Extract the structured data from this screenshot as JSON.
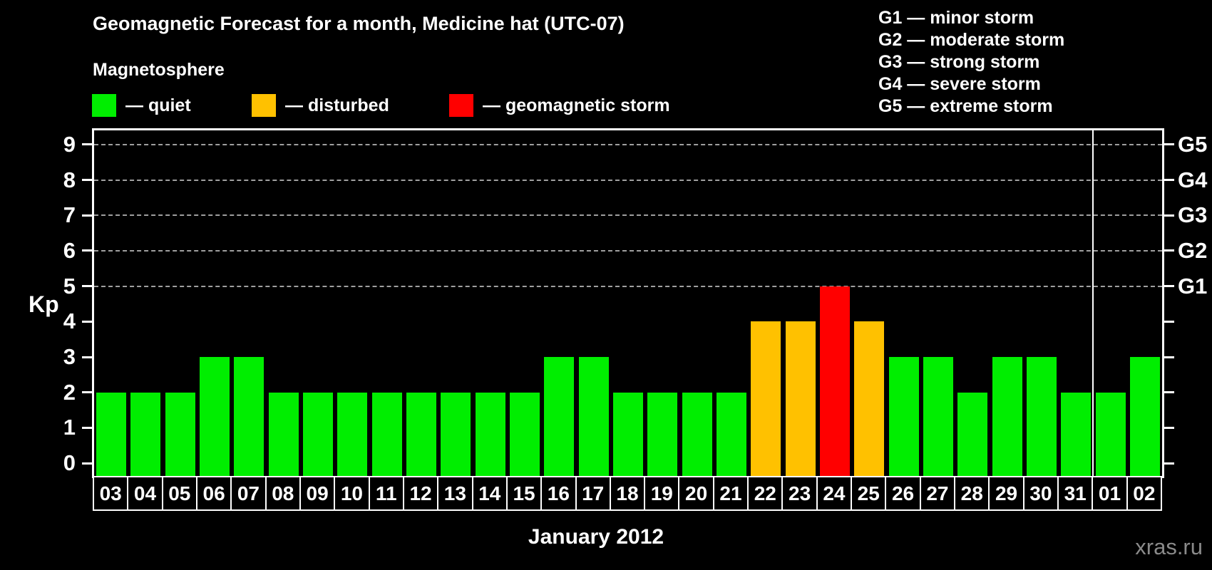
{
  "header": {
    "title": "Geomagnetic Forecast for a month, Medicine hat (UTC-07)",
    "subtitle": "Magnetosphere"
  },
  "colors": {
    "quiet": "#00ee00",
    "disturbed": "#ffc100",
    "storm": "#ff0000",
    "grid": "#9f9f9f",
    "axis": "#ffffff",
    "watermark": "#8a8a8a",
    "background": "#000000"
  },
  "legend": {
    "items": [
      {
        "name": "quiet",
        "label": "— quiet"
      },
      {
        "name": "disturbed",
        "label": "— disturbed"
      },
      {
        "name": "storm",
        "label": "— geomagnetic storm"
      }
    ]
  },
  "g_scale_legend": [
    "G1 — minor storm",
    "G2 — moderate storm",
    "G3 — strong storm",
    "G4 — severe storm",
    "G5 — extreme storm"
  ],
  "watermark": "xras.ru",
  "chart_data": {
    "type": "bar",
    "title": "Geomagnetic Forecast for a month, Medicine hat (UTC-07)",
    "ylabel": "Kp",
    "xlabel": "January 2012",
    "ylim": [
      0,
      9
    ],
    "yticks": [
      0,
      1,
      2,
      3,
      4,
      5,
      6,
      7,
      8,
      9
    ],
    "grid": "horizontal dashed lines at Kp 5 through 9",
    "gridlines_at": [
      5,
      6,
      7,
      8,
      9
    ],
    "right_axis": [
      {
        "label": "G1",
        "kp": 5
      },
      {
        "label": "G2",
        "kp": 6
      },
      {
        "label": "G3",
        "kp": 7
      },
      {
        "label": "G4",
        "kp": 8
      },
      {
        "label": "G5",
        "kp": 9
      }
    ],
    "categories": [
      "03",
      "04",
      "05",
      "06",
      "07",
      "08",
      "09",
      "10",
      "11",
      "12",
      "13",
      "14",
      "15",
      "16",
      "17",
      "18",
      "19",
      "20",
      "21",
      "22",
      "23",
      "24",
      "25",
      "26",
      "27",
      "28",
      "29",
      "30",
      "31",
      "01",
      "02"
    ],
    "values": [
      2,
      2,
      2,
      3,
      3,
      2,
      2,
      2,
      2,
      2,
      2,
      2,
      2,
      3,
      3,
      2,
      2,
      2,
      2,
      4,
      4,
      5,
      4,
      3,
      3,
      2,
      3,
      3,
      2,
      2,
      3
    ],
    "color_rule": {
      "quiet_max": 3,
      "disturbed_min": 4,
      "storm_min": 5
    },
    "month_boundary_after_category": "31",
    "legend_position": "top-left"
  }
}
